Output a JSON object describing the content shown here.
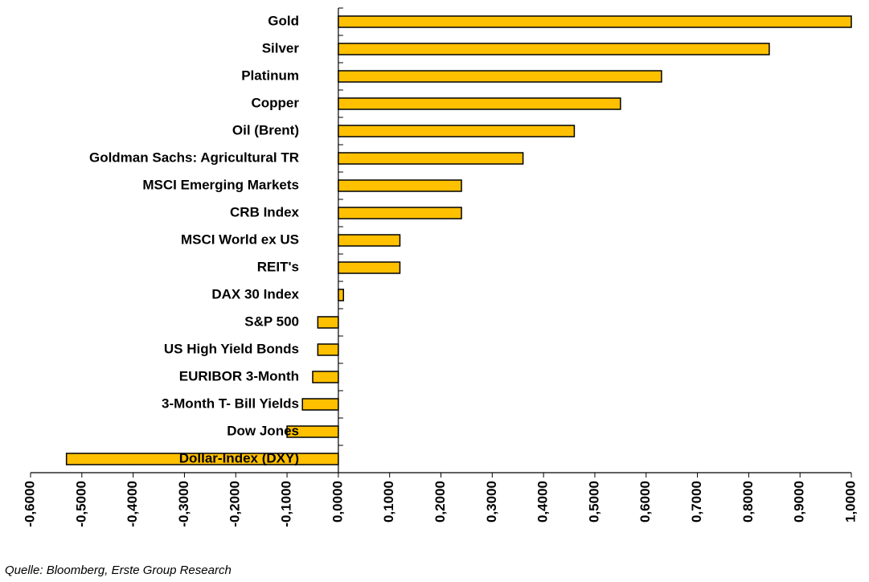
{
  "chart_data": {
    "type": "bar",
    "orientation": "horizontal",
    "categories": [
      "Gold",
      "Silver",
      "Platinum",
      "Copper",
      "Oil (Brent)",
      "Goldman Sachs: Agricultural TR",
      "MSCI Emerging Markets",
      "CRB Index",
      "MSCI World ex US",
      "REIT's",
      "DAX 30 Index",
      "S&P 500",
      "US High Yield Bonds",
      "EURIBOR 3-Month",
      "3-Month T- Bill Yields",
      "Dow Jones",
      "Dollar-Index (DXY)"
    ],
    "values": [
      1.0,
      0.84,
      0.63,
      0.55,
      0.46,
      0.36,
      0.24,
      0.24,
      0.12,
      0.12,
      0.01,
      -0.04,
      -0.04,
      -0.05,
      -0.07,
      -0.1,
      -0.53
    ],
    "color": "#FFC000",
    "xlim": [
      -0.6,
      1.0
    ],
    "xticks": [
      {
        "value": -0.6,
        "label": "-0,6000"
      },
      {
        "value": -0.5,
        "label": "-0,5000"
      },
      {
        "value": -0.4,
        "label": "-0,4000"
      },
      {
        "value": -0.3,
        "label": "-0,3000"
      },
      {
        "value": -0.2,
        "label": "-0,2000"
      },
      {
        "value": -0.1,
        "label": "-0,1000"
      },
      {
        "value": 0,
        "label": "0,0000"
      },
      {
        "value": 0.1,
        "label": "0,1000"
      },
      {
        "value": 0.2,
        "label": "0,2000"
      },
      {
        "value": 0.3,
        "label": "0,3000"
      },
      {
        "value": 0.4,
        "label": "0,4000"
      },
      {
        "value": 0.5,
        "label": "0,5000"
      },
      {
        "value": 0.6,
        "label": "0,6000"
      },
      {
        "value": 0.7,
        "label": "0,7000"
      },
      {
        "value": 0.8,
        "label": "0,8000"
      },
      {
        "value": 0.9,
        "label": "0,9000"
      },
      {
        "value": 1.0,
        "label": "1,0000"
      }
    ],
    "grid": false,
    "source": "Quelle: Bloomberg, Erste Group Research"
  }
}
